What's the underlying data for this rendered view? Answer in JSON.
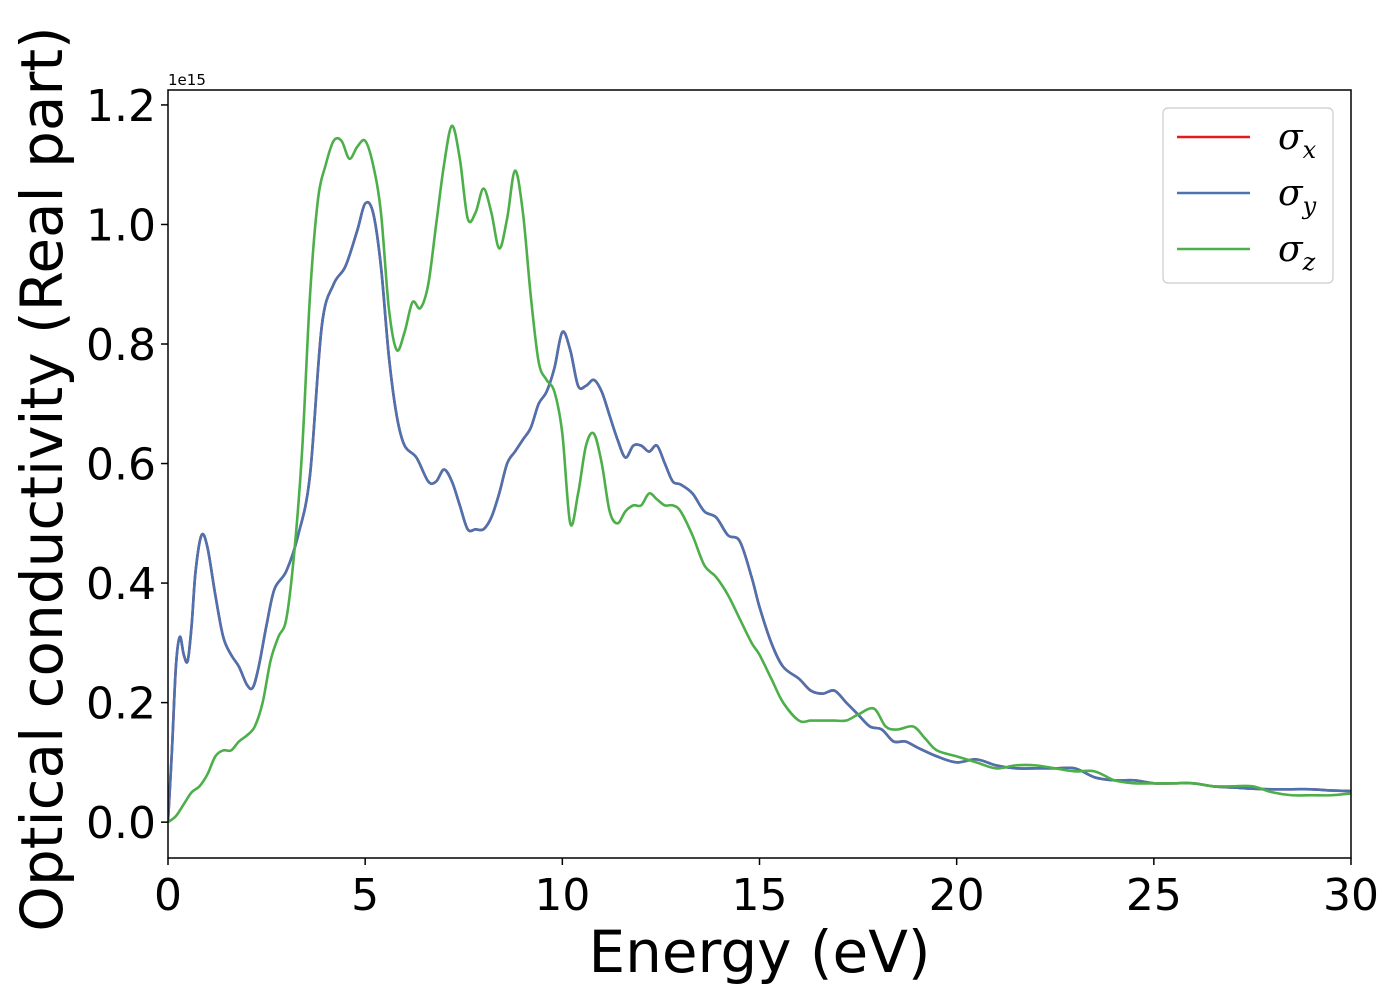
{
  "chart_data": {
    "type": "line",
    "title": "",
    "xlabel": "Energy (eV)",
    "ylabel": "Optical conductivity (Real part)",
    "y_offset_text": "1e15",
    "xlim": [
      0,
      30
    ],
    "ylim": [
      -0.06,
      1.225
    ],
    "x_ticks": [
      0,
      5,
      10,
      15,
      20,
      25,
      30
    ],
    "x_tick_labels": [
      "0",
      "5",
      "10",
      "15",
      "20",
      "25",
      "30"
    ],
    "y_ticks": [
      0.0,
      0.2,
      0.4,
      0.6,
      0.8,
      1.0,
      1.2
    ],
    "y_tick_labels": [
      "0.0",
      "0.2",
      "0.4",
      "0.6",
      "0.8",
      "1.0",
      "1.2"
    ],
    "grid": false,
    "legend_position": "top-right",
    "series": [
      {
        "name": "σx",
        "symbol": "σ",
        "subscript": "x",
        "color": "#e41a1c",
        "x": [
          0,
          0.1,
          0.2,
          0.3,
          0.4,
          0.5,
          0.6,
          0.7,
          0.85,
          1.0,
          1.2,
          1.4,
          1.6,
          1.8,
          2.0,
          2.15,
          2.3,
          2.5,
          2.7,
          3.0,
          3.3,
          3.6,
          3.9,
          4.2,
          4.5,
          4.8,
          5.0,
          5.2,
          5.4,
          5.6,
          5.8,
          6.0,
          6.3,
          6.6,
          6.8,
          7.0,
          7.2,
          7.4,
          7.6,
          7.8,
          8.0,
          8.2,
          8.4,
          8.6,
          8.8,
          9.0,
          9.2,
          9.4,
          9.6,
          9.8,
          10.0,
          10.2,
          10.4,
          10.6,
          10.8,
          11.0,
          11.2,
          11.4,
          11.6,
          11.8,
          12.0,
          12.2,
          12.4,
          12.6,
          12.8,
          13.0,
          13.3,
          13.6,
          13.9,
          14.2,
          14.5,
          14.8,
          15.0,
          15.3,
          15.6,
          16.0,
          16.3,
          16.6,
          16.9,
          17.2,
          17.5,
          17.8,
          18.1,
          18.4,
          18.7,
          19.0,
          19.5,
          20.0,
          20.5,
          21.0,
          21.5,
          22.0,
          22.5,
          23.0,
          23.5,
          24.0,
          24.5,
          25.0,
          25.5,
          26.0,
          26.5,
          27.0,
          27.5,
          28.0,
          28.5,
          29.0,
          29.5,
          30.0
        ],
        "y": [
          0.0,
          0.12,
          0.26,
          0.31,
          0.28,
          0.27,
          0.33,
          0.42,
          0.48,
          0.46,
          0.38,
          0.31,
          0.28,
          0.26,
          0.23,
          0.225,
          0.26,
          0.33,
          0.39,
          0.42,
          0.48,
          0.58,
          0.83,
          0.9,
          0.93,
          0.99,
          1.035,
          1.02,
          0.93,
          0.78,
          0.68,
          0.63,
          0.61,
          0.57,
          0.57,
          0.59,
          0.57,
          0.53,
          0.49,
          0.49,
          0.49,
          0.51,
          0.55,
          0.6,
          0.62,
          0.64,
          0.66,
          0.7,
          0.72,
          0.76,
          0.82,
          0.79,
          0.73,
          0.73,
          0.74,
          0.72,
          0.68,
          0.64,
          0.61,
          0.63,
          0.63,
          0.62,
          0.63,
          0.6,
          0.57,
          0.565,
          0.55,
          0.52,
          0.51,
          0.48,
          0.47,
          0.41,
          0.36,
          0.3,
          0.26,
          0.24,
          0.22,
          0.215,
          0.22,
          0.2,
          0.18,
          0.16,
          0.155,
          0.135,
          0.135,
          0.125,
          0.11,
          0.1,
          0.105,
          0.095,
          0.09,
          0.09,
          0.09,
          0.09,
          0.075,
          0.07,
          0.07,
          0.065,
          0.065,
          0.065,
          0.06,
          0.058,
          0.056,
          0.055,
          0.055,
          0.055,
          0.053,
          0.052
        ]
      },
      {
        "name": "σy",
        "symbol": "σ",
        "subscript": "y",
        "color": "#4c72b0",
        "x": [
          0,
          0.1,
          0.2,
          0.3,
          0.4,
          0.5,
          0.6,
          0.7,
          0.85,
          1.0,
          1.2,
          1.4,
          1.6,
          1.8,
          2.0,
          2.15,
          2.3,
          2.5,
          2.7,
          3.0,
          3.3,
          3.6,
          3.9,
          4.2,
          4.5,
          4.8,
          5.0,
          5.2,
          5.4,
          5.6,
          5.8,
          6.0,
          6.3,
          6.6,
          6.8,
          7.0,
          7.2,
          7.4,
          7.6,
          7.8,
          8.0,
          8.2,
          8.4,
          8.6,
          8.8,
          9.0,
          9.2,
          9.4,
          9.6,
          9.8,
          10.0,
          10.2,
          10.4,
          10.6,
          10.8,
          11.0,
          11.2,
          11.4,
          11.6,
          11.8,
          12.0,
          12.2,
          12.4,
          12.6,
          12.8,
          13.0,
          13.3,
          13.6,
          13.9,
          14.2,
          14.5,
          14.8,
          15.0,
          15.3,
          15.6,
          16.0,
          16.3,
          16.6,
          16.9,
          17.2,
          17.5,
          17.8,
          18.1,
          18.4,
          18.7,
          19.0,
          19.5,
          20.0,
          20.5,
          21.0,
          21.5,
          22.0,
          22.5,
          23.0,
          23.5,
          24.0,
          24.5,
          25.0,
          25.5,
          26.0,
          26.5,
          27.0,
          27.5,
          28.0,
          28.5,
          29.0,
          29.5,
          30.0
        ],
        "y": [
          0.0,
          0.12,
          0.26,
          0.31,
          0.28,
          0.27,
          0.33,
          0.42,
          0.48,
          0.46,
          0.38,
          0.31,
          0.28,
          0.26,
          0.23,
          0.225,
          0.26,
          0.33,
          0.39,
          0.42,
          0.48,
          0.58,
          0.83,
          0.9,
          0.93,
          0.99,
          1.035,
          1.02,
          0.93,
          0.78,
          0.68,
          0.63,
          0.61,
          0.57,
          0.57,
          0.59,
          0.57,
          0.53,
          0.49,
          0.49,
          0.49,
          0.51,
          0.55,
          0.6,
          0.62,
          0.64,
          0.66,
          0.7,
          0.72,
          0.76,
          0.82,
          0.79,
          0.73,
          0.73,
          0.74,
          0.72,
          0.68,
          0.64,
          0.61,
          0.63,
          0.63,
          0.62,
          0.63,
          0.6,
          0.57,
          0.565,
          0.55,
          0.52,
          0.51,
          0.48,
          0.47,
          0.41,
          0.36,
          0.3,
          0.26,
          0.24,
          0.22,
          0.215,
          0.22,
          0.2,
          0.18,
          0.16,
          0.155,
          0.135,
          0.135,
          0.125,
          0.11,
          0.1,
          0.105,
          0.095,
          0.09,
          0.09,
          0.09,
          0.09,
          0.075,
          0.07,
          0.07,
          0.065,
          0.065,
          0.065,
          0.06,
          0.058,
          0.056,
          0.055,
          0.055,
          0.055,
          0.053,
          0.052
        ]
      },
      {
        "name": "σz",
        "symbol": "σ",
        "subscript": "z",
        "color": "#4daf4a",
        "x": [
          0,
          0.2,
          0.4,
          0.6,
          0.8,
          1.0,
          1.2,
          1.4,
          1.6,
          1.8,
          2.0,
          2.2,
          2.4,
          2.6,
          2.8,
          3.0,
          3.2,
          3.4,
          3.6,
          3.8,
          4.0,
          4.2,
          4.4,
          4.6,
          4.8,
          5.0,
          5.2,
          5.4,
          5.6,
          5.8,
          6.0,
          6.2,
          6.4,
          6.6,
          6.8,
          7.0,
          7.2,
          7.4,
          7.6,
          7.8,
          8.0,
          8.2,
          8.4,
          8.6,
          8.8,
          9.0,
          9.2,
          9.4,
          9.6,
          9.8,
          10.0,
          10.2,
          10.4,
          10.6,
          10.8,
          11.0,
          11.2,
          11.4,
          11.6,
          11.8,
          12.0,
          12.2,
          12.4,
          12.6,
          12.8,
          13.0,
          13.3,
          13.6,
          13.9,
          14.2,
          14.5,
          14.8,
          15.0,
          15.3,
          15.6,
          16.0,
          16.3,
          16.6,
          16.9,
          17.2,
          17.5,
          17.9,
          18.2,
          18.5,
          18.9,
          19.2,
          19.5,
          20.0,
          20.5,
          21.0,
          21.5,
          22.0,
          22.5,
          23.0,
          23.5,
          24.0,
          24.5,
          25.0,
          25.5,
          26.0,
          26.5,
          27.0,
          27.5,
          28.0,
          28.5,
          29.0,
          29.5,
          30.0
        ],
        "y": [
          0.0,
          0.01,
          0.03,
          0.05,
          0.06,
          0.08,
          0.11,
          0.12,
          0.12,
          0.135,
          0.145,
          0.16,
          0.2,
          0.27,
          0.31,
          0.34,
          0.45,
          0.62,
          0.88,
          1.04,
          1.1,
          1.14,
          1.14,
          1.11,
          1.13,
          1.14,
          1.1,
          1.02,
          0.86,
          0.79,
          0.82,
          0.87,
          0.86,
          0.9,
          1.0,
          1.1,
          1.165,
          1.11,
          1.01,
          1.02,
          1.06,
          1.02,
          0.96,
          1.01,
          1.09,
          1.02,
          0.88,
          0.77,
          0.74,
          0.72,
          0.65,
          0.5,
          0.55,
          0.63,
          0.65,
          0.6,
          0.52,
          0.5,
          0.52,
          0.53,
          0.53,
          0.55,
          0.54,
          0.53,
          0.53,
          0.52,
          0.48,
          0.43,
          0.41,
          0.38,
          0.34,
          0.3,
          0.28,
          0.24,
          0.2,
          0.17,
          0.17,
          0.17,
          0.17,
          0.17,
          0.18,
          0.19,
          0.16,
          0.155,
          0.16,
          0.14,
          0.12,
          0.11,
          0.1,
          0.09,
          0.095,
          0.095,
          0.09,
          0.085,
          0.085,
          0.07,
          0.065,
          0.065,
          0.065,
          0.065,
          0.06,
          0.06,
          0.06,
          0.05,
          0.045,
          0.045,
          0.045,
          0.048
        ]
      }
    ]
  }
}
